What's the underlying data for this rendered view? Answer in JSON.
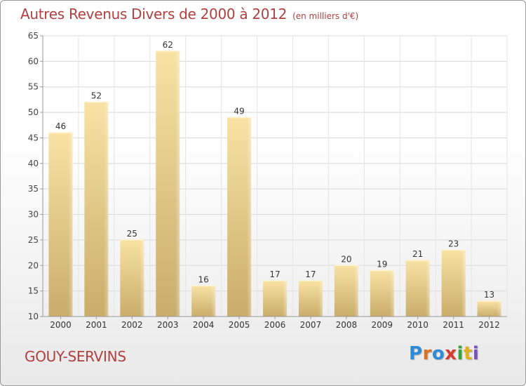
{
  "header": {
    "title": "Autres Revenus Divers de 2000 à 2012",
    "unit": "(en milliers d'€)"
  },
  "footer": {
    "town": "GOUY-SERVINS",
    "brand_parts": [
      "P",
      "r",
      "o",
      "x",
      "i",
      "t",
      "i"
    ]
  },
  "colors": {
    "title": "#b04040",
    "bar_light": "#f8e2a4",
    "bar_dark": "#c9ad6a",
    "grid": "#d8d8d8",
    "axis": "#999999"
  },
  "chart_data": {
    "type": "bar",
    "categories": [
      "2000",
      "2001",
      "2002",
      "2003",
      "2004",
      "2005",
      "2006",
      "2007",
      "2008",
      "2009",
      "2010",
      "2011",
      "2012"
    ],
    "values": [
      46,
      52,
      25,
      62,
      16,
      49,
      17,
      17,
      20,
      19,
      21,
      23,
      13
    ],
    "title": "Autres Revenus Divers de 2000 à 2012",
    "subtitle": "(en milliers d'€)",
    "xlabel": "",
    "ylabel": "",
    "ylim": [
      10,
      65
    ],
    "yticks": [
      10,
      15,
      20,
      25,
      30,
      35,
      40,
      45,
      50,
      55,
      60,
      65
    ],
    "grid": true
  }
}
